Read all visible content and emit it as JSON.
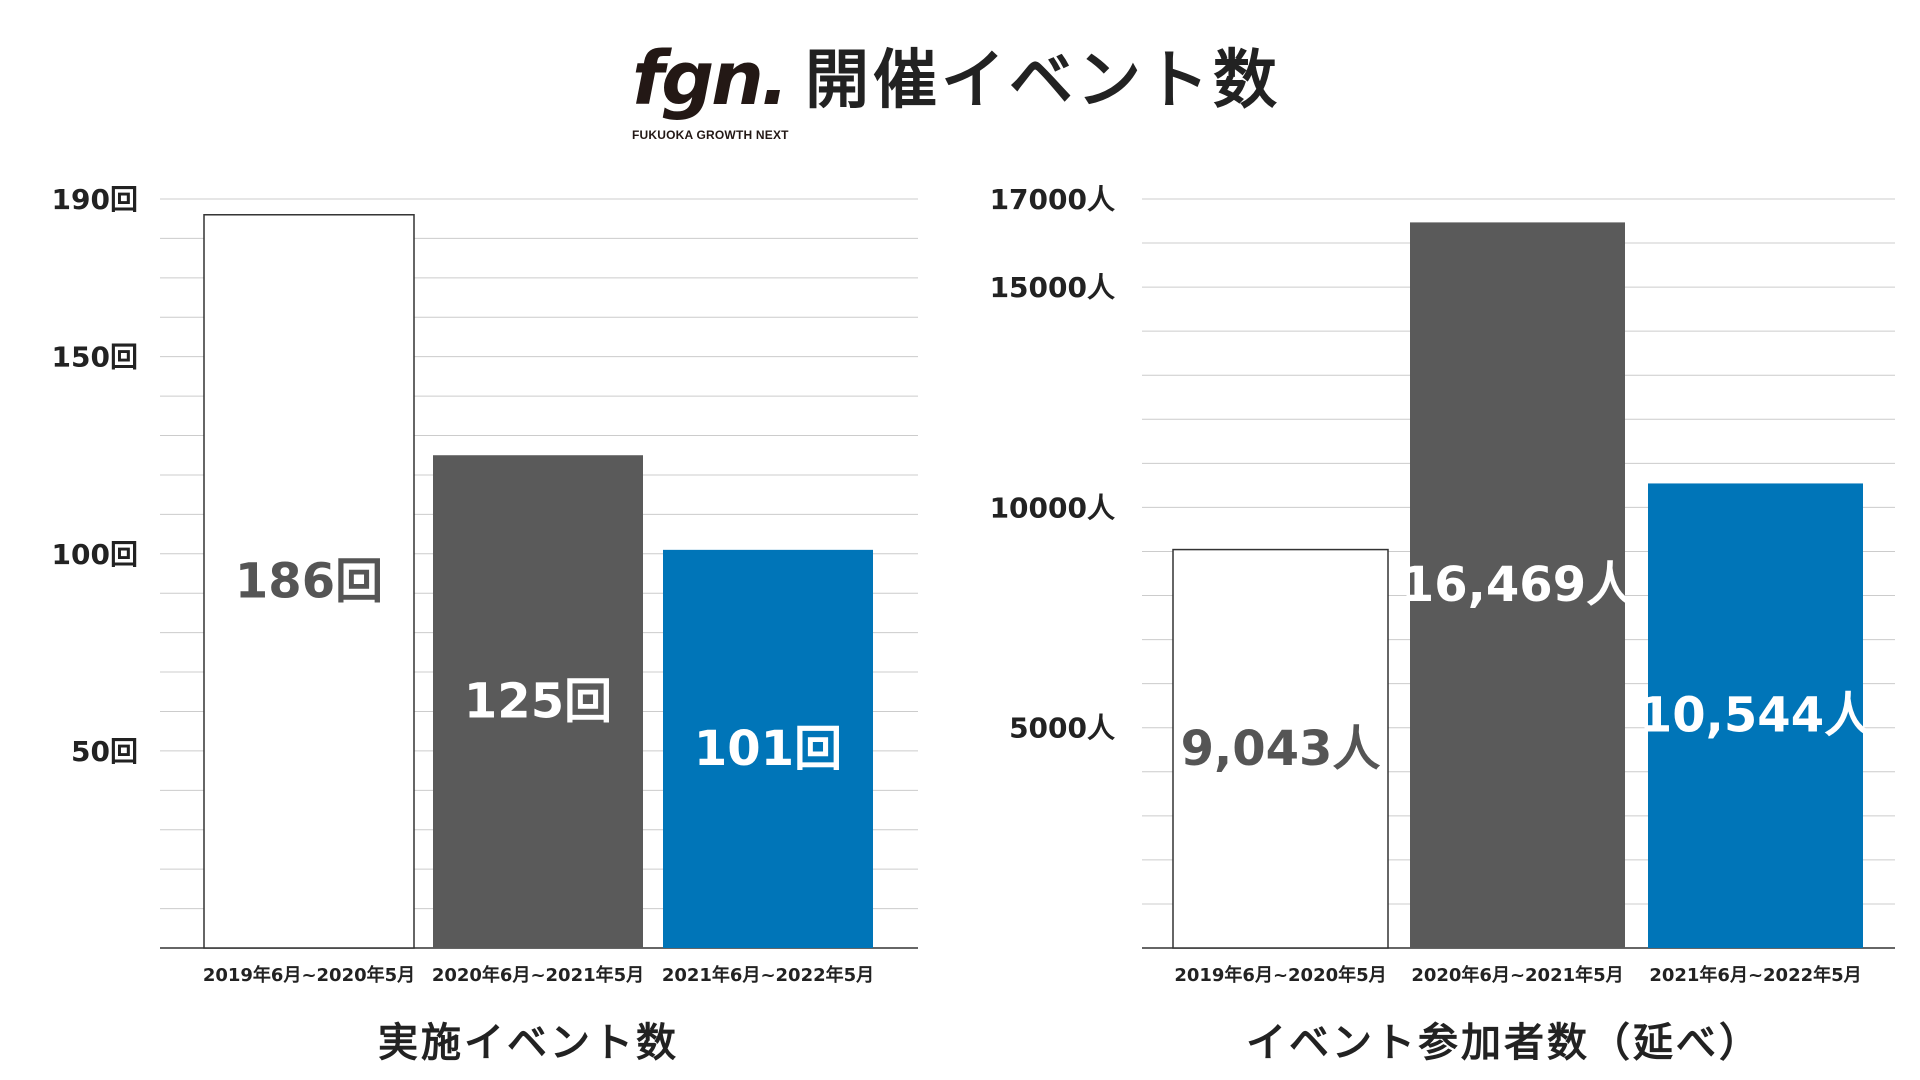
{
  "header": {
    "logo_text": "fgn.",
    "logo_subtext": "FUKUOKA GROWTH NEXT",
    "title": "開催イベント数"
  },
  "colors": {
    "white_bar": "#ffffff",
    "gray_bar": "#5a5a5a",
    "blue_bar": "#0075b8",
    "gridline": "#cccccc",
    "axis": "#333333"
  },
  "chart_data": [
    {
      "type": "bar",
      "caption": "実施イベント数",
      "categories": [
        "2019年6月~2020年5月",
        "2020年6月~2021年5月",
        "2021年6月~2022年5月"
      ],
      "values": [
        186,
        125,
        101
      ],
      "data_labels": [
        "186回",
        "125回",
        "101回"
      ],
      "bar_colors": [
        "#ffffff",
        "#5a5a5a",
        "#0075b8"
      ],
      "label_colors": [
        "#555555",
        "#ffffff",
        "#ffffff"
      ],
      "ylim": [
        0,
        190
      ],
      "yticks": [
        50,
        100,
        150,
        190
      ],
      "ytick_labels": [
        "50回",
        "100回",
        "150回",
        "190回"
      ],
      "grid": true,
      "grid_step": 10
    },
    {
      "type": "bar",
      "caption": "イベント参加者数（延べ）",
      "categories": [
        "2019年6月~2020年5月",
        "2020年6月~2021年5月",
        "2021年6月~2022年5月"
      ],
      "values": [
        9043,
        16469,
        10544
      ],
      "data_labels": [
        "9,043人",
        "16,469人",
        "10,544人"
      ],
      "bar_colors": [
        "#ffffff",
        "#5a5a5a",
        "#0075b8"
      ],
      "label_colors": [
        "#555555",
        "#ffffff",
        "#ffffff"
      ],
      "ylim": [
        0,
        17000
      ],
      "yticks": [
        5000,
        10000,
        15000,
        17000
      ],
      "ytick_labels": [
        "5000人",
        "10000人",
        "15000人",
        "17000人"
      ],
      "grid": true,
      "grid_step": 1000
    }
  ]
}
